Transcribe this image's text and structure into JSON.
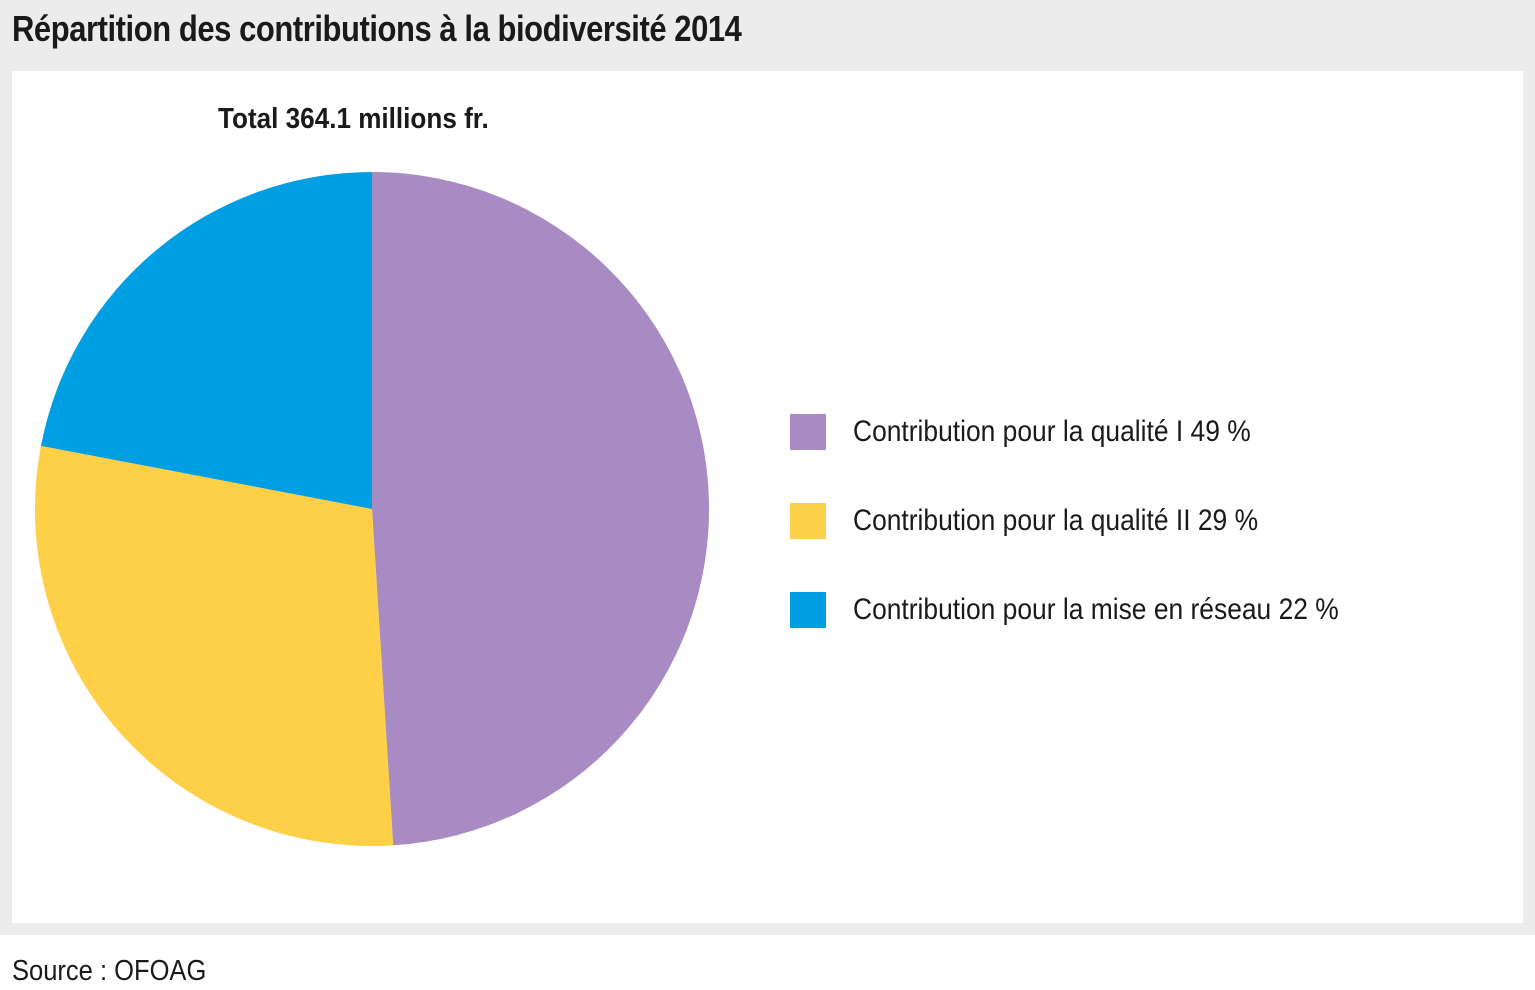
{
  "chart_data": {
    "type": "pie",
    "title": "Répartition des contributions à la biodiversité 2014",
    "subtitle": "Total 364.1 millions fr.",
    "categories": [
      "Contribution pour la qualité I",
      "Contribution pour la qualité II",
      "Contribution pour la mise en réseau"
    ],
    "values": [
      49,
      29,
      22
    ],
    "unit": "%",
    "legend_labels": [
      "Contribution pour la qualité I  49 %",
      "Contribution pour la qualité II  29 %",
      "Contribution pour la mise en réseau  22 %"
    ],
    "colors": [
      "#a78bc2",
      "#fdd047",
      "#009fe3"
    ],
    "start_angle_deg": 0,
    "direction": "clockwise",
    "legend_position": "right",
    "source": "Source : OFOAG"
  }
}
